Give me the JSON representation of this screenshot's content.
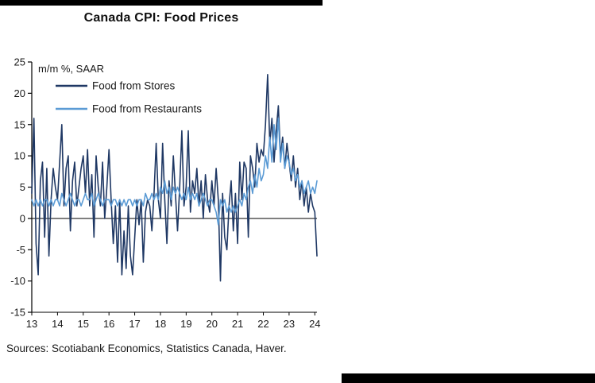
{
  "footer": {
    "sources": "Sources: Scotiabank Economics, Statistics Canada, Haver."
  },
  "decorations": {
    "accent_bar_color": "#000000",
    "background_color": "#ffffff"
  },
  "chart_data": {
    "type": "line",
    "title": "Canada CPI: Food Prices",
    "annotation": "m/m %, SAAR",
    "xlabel": "",
    "ylabel": "",
    "x_start": "2013-01",
    "x_end": "2024-02",
    "x_frequency": "monthly",
    "x_tick_labels": [
      "13",
      "14",
      "15",
      "16",
      "17",
      "18",
      "19",
      "20",
      "21",
      "22",
      "23",
      "24"
    ],
    "y_ticks": [
      25,
      20,
      15,
      10,
      5,
      0,
      -5,
      -10,
      -15
    ],
    "ylim": [
      -15,
      25
    ],
    "grid": false,
    "legend_position": "top-left-inside",
    "axis_color": "#000000",
    "series": [
      {
        "name": "Food from Stores",
        "color": "#1f3864",
        "values": [
          4,
          16,
          -4,
          -9,
          6,
          9,
          -3,
          8,
          -6,
          3,
          8,
          5,
          3,
          9,
          15,
          2,
          8,
          10,
          -2,
          6,
          9,
          2,
          5,
          8,
          10,
          4,
          11,
          2,
          7,
          -3,
          10,
          5,
          2,
          9,
          0,
          5,
          11,
          3,
          -4,
          2,
          -7,
          3,
          -9,
          -2,
          -8,
          2,
          -6,
          -9,
          -3,
          3,
          -1,
          3,
          -7,
          1,
          3,
          2,
          -2,
          4,
          12,
          3,
          0,
          12,
          3,
          -4,
          6,
          2,
          10,
          4,
          -2,
          5,
          14,
          2,
          5,
          14,
          1,
          6,
          4,
          8,
          2,
          6,
          0,
          7,
          3,
          1,
          6,
          2,
          8,
          3,
          -10,
          4,
          -3,
          -5,
          2,
          6,
          -2,
          4,
          -4,
          9,
          3,
          9,
          8,
          -3,
          10,
          8,
          5,
          12,
          9,
          11,
          10,
          15,
          23,
          12,
          16,
          9,
          14,
          18,
          10,
          13,
          8,
          12,
          9,
          6,
          10,
          5,
          8,
          3,
          6,
          2,
          5,
          1,
          4,
          2,
          1,
          -6
        ]
      },
      {
        "name": "Food from Restaurants",
        "color": "#5b9bd5",
        "values": [
          3,
          2,
          3,
          2,
          3,
          2,
          3,
          3,
          2,
          3,
          2,
          3,
          3,
          2,
          4,
          3,
          2,
          3,
          4,
          3,
          2,
          3,
          3,
          2,
          3,
          4,
          3,
          3,
          4,
          2,
          3,
          4,
          3,
          2,
          3,
          3,
          3,
          2,
          3,
          3,
          2,
          3,
          2,
          3,
          2,
          3,
          3,
          2,
          3,
          2,
          3,
          3,
          2,
          4,
          3,
          3,
          4,
          3,
          4,
          3,
          5,
          4,
          6,
          4,
          5,
          3,
          5,
          4,
          5,
          4,
          3,
          4,
          3,
          5,
          3,
          4,
          3,
          4,
          2,
          3,
          4,
          3,
          2,
          3,
          3,
          2,
          1,
          -1,
          3,
          2,
          3,
          1,
          2,
          1,
          2,
          1,
          2,
          3,
          2,
          4,
          3,
          5,
          6,
          4,
          7,
          5,
          8,
          6,
          7,
          10,
          8,
          13,
          9,
          15,
          11,
          16,
          9,
          12,
          8,
          10,
          9,
          7,
          8,
          6,
          7,
          5,
          6,
          4,
          5,
          6,
          4,
          5,
          4,
          6
        ]
      }
    ]
  }
}
